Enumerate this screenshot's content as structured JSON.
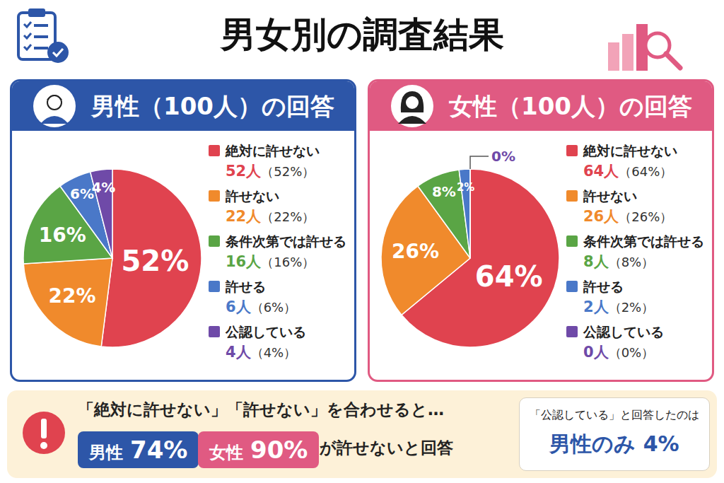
{
  "header": {
    "title": "男女別の調査結果"
  },
  "chart_data": [
    {
      "type": "pie",
      "title": "男性（100人）の回答",
      "color": "#2d56a8",
      "categories": [
        "絶対に許せない",
        "許せない",
        "条件次第では許せる",
        "許せる",
        "公認している"
      ],
      "values": [
        52,
        22,
        16,
        6,
        4
      ],
      "value_labels": [
        "52%",
        "22%",
        "16%",
        "6%",
        "4%"
      ],
      "count_labels": [
        "52人",
        "22人",
        "16人",
        "6人",
        "4人"
      ],
      "percent_labels": [
        "（52%）",
        "（22%）",
        "（16%）",
        "（6%）",
        "（4%）"
      ],
      "colors": [
        "#e0434f",
        "#f08a2c",
        "#5aa545",
        "#4a78c8",
        "#6f4aa8"
      ],
      "data_labels": true,
      "legend": "right"
    },
    {
      "type": "pie",
      "title": "女性（100人）の回答",
      "color": "#e05a82",
      "categories": [
        "絶対に許せない",
        "許せない",
        "条件次第では許せる",
        "許せる",
        "公認している"
      ],
      "values": [
        64,
        26,
        8,
        2,
        0
      ],
      "value_labels": [
        "64%",
        "26%",
        "8%",
        "2%",
        "0%"
      ],
      "count_labels": [
        "64人",
        "26人",
        "8人",
        "2人",
        "0人"
      ],
      "percent_labels": [
        "（64%）",
        "（26%）",
        "（8%）",
        "（2%）",
        "（0%）"
      ],
      "colors": [
        "#e0434f",
        "#f08a2c",
        "#5aa545",
        "#4a78c8",
        "#6f4aa8"
      ],
      "data_labels": true,
      "legend": "right"
    }
  ],
  "summary": {
    "lead": "「絶対に許せない」「許せない」を合わせると…",
    "items": [
      {
        "label": "男性",
        "value_label": "74%"
      },
      {
        "label": "女性",
        "value_label": "90%"
      }
    ],
    "tail": "が許せないと回答",
    "note_title": "「公認している」と回答したのは",
    "note_text": "男性のみ 4%"
  }
}
